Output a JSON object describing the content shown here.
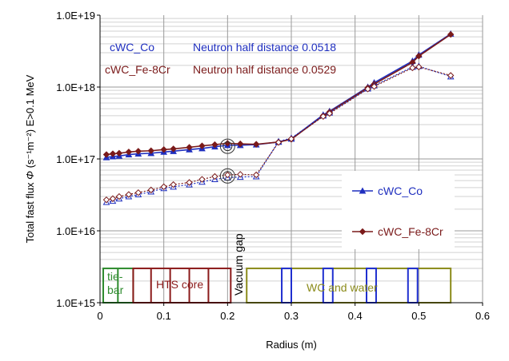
{
  "chart_data": {
    "type": "line",
    "xlabel": "Radius (m)",
    "ylabel": "Total fast flux",
    "ylabel_symbol": "Φ",
    "ylabel_units": "(s⁻¹m⁻²)",
    "ylabel_condition": "E>0.1 MeV",
    "xlim": [
      0,
      0.6
    ],
    "ylim": [
      1000000000000000.0,
      1e+19
    ],
    "y_scale": "log",
    "grid": true,
    "x_ticks": [
      "0",
      "0.1",
      "0.2",
      "0.3",
      "0.4",
      "0.5",
      "0.6"
    ],
    "y_ticks": [
      "1.0E+15",
      "1.0E+16",
      "1.0E+17",
      "1.0E+18",
      "1.0E+19"
    ],
    "legend": [
      "cWC_Co",
      "cWC_Fe-8Cr"
    ],
    "legend_placement": "right",
    "annotations": {
      "co_label": "cWC_Co",
      "co_half": "Neutron half distance 0.0518",
      "fe_label": "cWC_Fe-8Cr",
      "fe_half": "Neutron half distance 0.0529",
      "vacuum": "Vacuum gap",
      "tie_bar": "tie-\nbar",
      "hts": "HTS core",
      "wc": "WC and water"
    },
    "series": [
      {
        "name": "cWC_Co",
        "style": "solid",
        "color": "#1f2fbf",
        "marker": "triangle",
        "x": [
          0.01,
          0.02,
          0.03,
          0.045,
          0.06,
          0.08,
          0.1,
          0.115,
          0.14,
          0.16,
          0.18,
          0.2,
          0.22,
          0.245,
          0.28,
          0.3,
          0.35,
          0.36,
          0.42,
          0.43,
          0.49,
          0.5,
          0.55
        ],
        "y": [
          1.05e+17,
          1.08e+17,
          1.1e+17,
          1.15e+17,
          1.18e+17,
          1.2e+17,
          1.25e+17,
          1.28e+17,
          1.35e+17,
          1.4e+17,
          1.48e+17,
          1.55e+17,
          1.55e+17,
          1.58e+17,
          1.72e+17,
          1.9e+17,
          4.1e+17,
          4.6e+17,
          1e+18,
          1.15e+18,
          2.3e+18,
          2.8e+18,
          5.5e+18
        ]
      },
      {
        "name": "cWC_Fe-8Cr",
        "style": "solid",
        "color": "#7a1a1a",
        "marker": "diamond",
        "x": [
          0.01,
          0.02,
          0.03,
          0.045,
          0.06,
          0.08,
          0.1,
          0.115,
          0.14,
          0.16,
          0.18,
          0.2,
          0.22,
          0.245,
          0.28,
          0.3,
          0.35,
          0.36,
          0.42,
          0.43,
          0.49,
          0.5,
          0.55
        ],
        "y": [
          1.15e+17,
          1.18e+17,
          1.2e+17,
          1.25e+17,
          1.28e+17,
          1.3e+17,
          1.35e+17,
          1.38e+17,
          1.45e+17,
          1.52e+17,
          1.58e+17,
          1.65e+17,
          1.62e+17,
          1.6e+17,
          1.72e+17,
          1.88e+17,
          4e+17,
          4.5e+17,
          9.8e+17,
          1.1e+18,
          2.2e+18,
          2.7e+18,
          5.4e+18
        ]
      },
      {
        "name": "",
        "style": "dotted",
        "color": "#1f2fbf",
        "marker": "triangle-open",
        "x": [
          0.01,
          0.02,
          0.03,
          0.045,
          0.06,
          0.08,
          0.1,
          0.115,
          0.14,
          0.16,
          0.18,
          0.2,
          0.22,
          0.245,
          0.28,
          0.3,
          0.35,
          0.36,
          0.42,
          0.43,
          0.49,
          0.5,
          0.55
        ],
        "y": [
          2.5e+16,
          2.6e+16,
          2.8e+16,
          3e+16,
          3.2e+16,
          3.5e+16,
          3.9e+16,
          4.1e+16,
          4.4e+16,
          4.8e+16,
          5.2e+16,
          5.5e+16,
          5.6e+16,
          5.7e+16,
          1.75e+17,
          1.95e+17,
          4e+17,
          4.4e+17,
          9.5e+17,
          1.05e+18,
          1.9e+18,
          1.95e+18,
          1.4e+18
        ]
      },
      {
        "name": "",
        "style": "dotted",
        "color": "#7a1a1a",
        "marker": "diamond-open",
        "x": [
          0.01,
          0.02,
          0.03,
          0.045,
          0.06,
          0.08,
          0.1,
          0.115,
          0.14,
          0.16,
          0.18,
          0.2,
          0.22,
          0.245,
          0.28,
          0.3,
          0.35,
          0.36,
          0.42,
          0.43,
          0.49,
          0.5,
          0.55
        ],
        "y": [
          2.7e+16,
          2.8e+16,
          3e+16,
          3.2e+16,
          3.4e+16,
          3.7e+16,
          4.1e+16,
          4.4e+16,
          4.7e+16,
          5.2e+16,
          5.7e+16,
          6e+16,
          6.1e+16,
          6e+16,
          1.7e+17,
          1.9e+17,
          3.9e+17,
          4.3e+17,
          9.4e+17,
          1.02e+18,
          1.85e+18,
          1.9e+18,
          1.45e+18
        ]
      }
    ],
    "circles": [
      {
        "x": 0.2,
        "y": 1.5e+17
      },
      {
        "x": 0.2,
        "y": 5.8e+16
      }
    ],
    "regions": [
      {
        "label": "tie_bar",
        "color": "#2e8b2e",
        "x": [
          0.005,
          0.052
        ],
        "dividers": [
          0.028
        ]
      },
      {
        "label": "hts",
        "color": "#8b1a1a",
        "x": [
          0.052,
          0.205
        ],
        "dividers": [
          0.08,
          0.11,
          0.14,
          0.17
        ]
      },
      {
        "label": "wc",
        "color": "#8b8b1a",
        "x": [
          0.23,
          0.55
        ],
        "dividers": []
      }
    ],
    "blue_boxes": [
      [
        0.285,
        0.3
      ],
      [
        0.35,
        0.365
      ],
      [
        0.418,
        0.433
      ],
      [
        0.483,
        0.498
      ]
    ],
    "region_ymax": 3000000000000000.0
  }
}
